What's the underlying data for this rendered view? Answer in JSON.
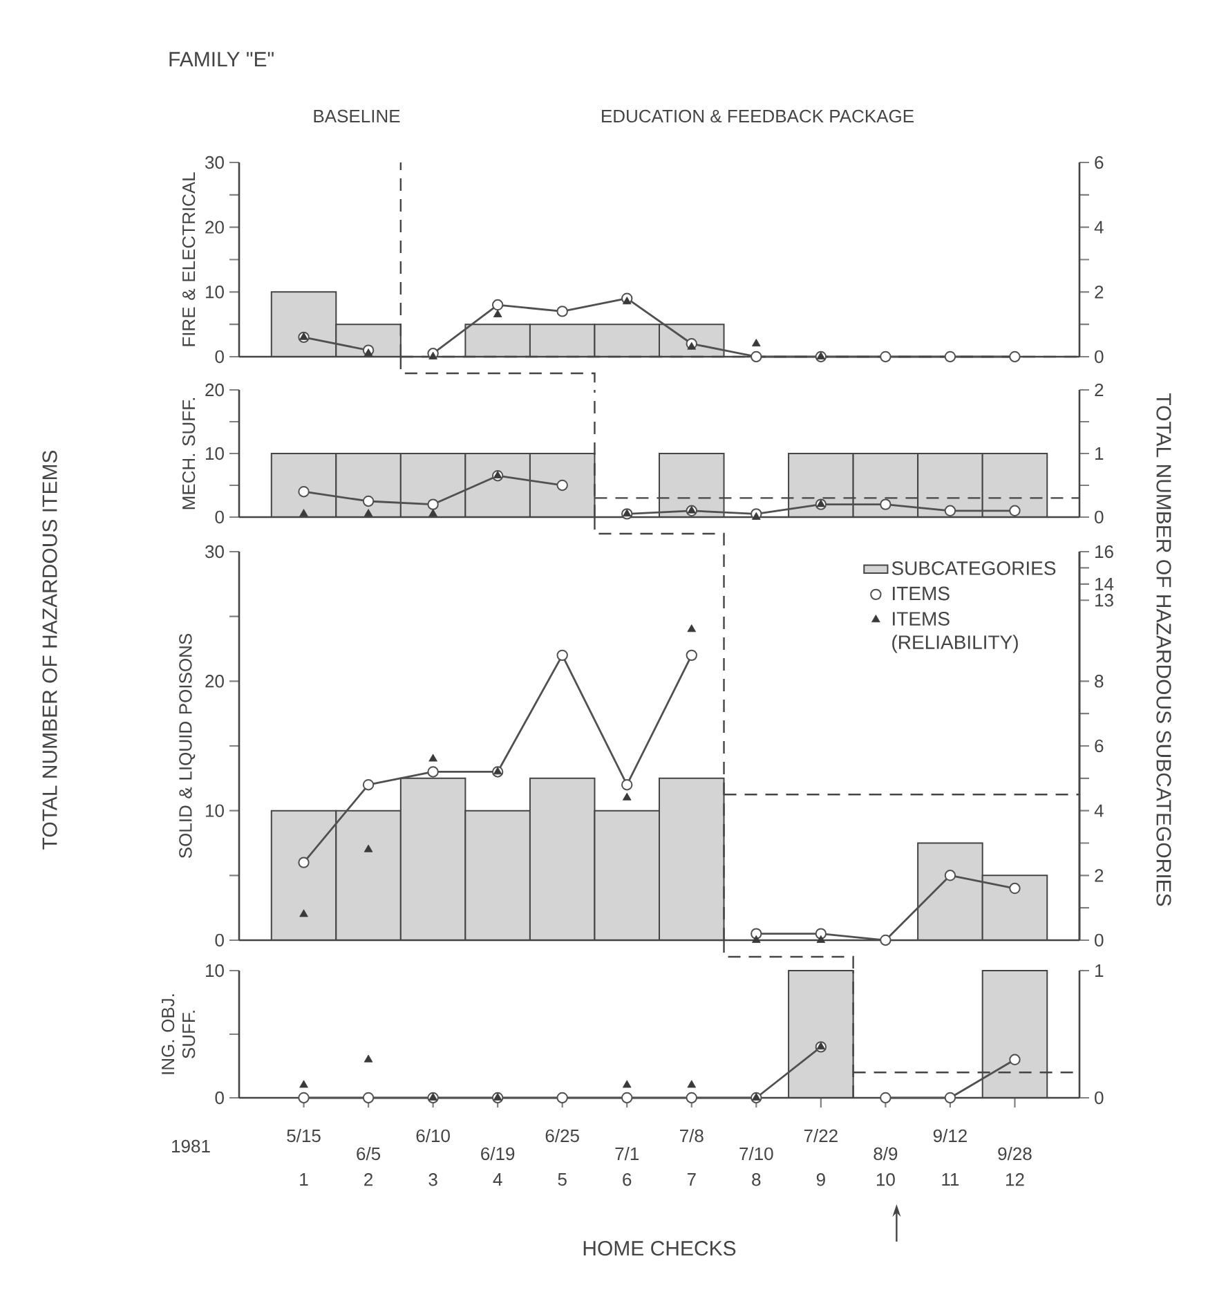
{
  "chart_data": [
    {
      "type": "bar",
      "title": "FAMILY \"E\"",
      "ylabel": "FIRE & ELECTRICAL",
      "x": [
        1,
        2,
        3,
        4,
        5,
        6,
        7,
        8,
        9,
        10,
        11,
        12
      ],
      "xlim": [
        0,
        13
      ],
      "ylim": [
        0,
        30
      ],
      "yticks": [
        0,
        {
          "value": 5,
          "label": null
        },
        10,
        {
          "value": 15,
          "label": null
        },
        20,
        {
          "value": 25,
          "label": null
        },
        30
      ],
      "y2lim": [
        0,
        6
      ],
      "y2ticks": [
        0,
        {
          "value": 1,
          "label": null
        },
        2,
        {
          "value": 3,
          "label": null
        },
        4,
        {
          "value": 5,
          "label": null
        },
        6
      ],
      "tick_labels": "y",
      "series": [
        {
          "axis": "y2",
          "color": "#d4d4d4",
          "values": [
            2,
            1,
            null,
            1,
            1,
            1,
            1,
            null,
            null,
            null,
            null,
            null
          ]
        },
        {
          "type": "line",
          "marker": "circle",
          "line_style": "solid",
          "color": "#505050",
          "values": [
            3,
            1,
            0.5,
            8,
            7,
            9,
            2,
            0,
            0,
            0,
            0,
            0
          ]
        },
        {
          "type": "scatter",
          "marker": "triangle",
          "color": "#3a3a3a",
          "values": [
            3,
            0.5,
            0,
            6.5,
            null,
            8.5,
            1.5,
            2,
            0,
            null,
            null,
            null
          ]
        }
      ],
      "ref_lines": [
        {
          "axis": "x",
          "value": 2.5,
          "line_style": "dashed"
        },
        {
          "axis": "y",
          "value": 0,
          "line_style": "dashed"
        }
      ],
      "annotations": [
        "BASELINE",
        "EDUCATION & FEEDBACK PACKAGE",
        "TOTAL NUMBER OF HAZARDOUS ITEMS",
        "TOTAL NUMBER OF HAZARDOUS SUBCATEGORIES"
      ]
    },
    {
      "type": "bar",
      "ylabel": "MECH. SUFF.",
      "x": [
        1,
        2,
        3,
        4,
        5,
        6,
        7,
        8,
        9,
        10,
        11,
        12
      ],
      "xlim": [
        0,
        13
      ],
      "ylim": [
        0,
        20
      ],
      "yticks": [
        0,
        {
          "value": 5,
          "label": null
        },
        10,
        {
          "value": 15,
          "label": null
        },
        20
      ],
      "y2lim": [
        0,
        2
      ],
      "y2ticks": [
        0,
        {
          "value": 0.5,
          "label": null
        },
        1,
        {
          "value": 1.5,
          "label": null
        },
        2
      ],
      "tick_labels": "y",
      "series": [
        {
          "axis": "y2",
          "color": "#d4d4d4",
          "values": [
            1,
            1,
            1,
            1,
            1,
            null,
            1,
            null,
            1,
            1,
            1,
            1
          ]
        },
        {
          "type": "line",
          "marker": "circle",
          "line_style": "solid",
          "color": "#505050",
          "values": [
            4,
            2.5,
            2,
            6.5,
            5,
            0.5,
            1,
            0.5,
            2,
            2,
            1,
            1
          ]
        },
        {
          "type": "scatter",
          "marker": "triangle",
          "color": "#3a3a3a",
          "values": [
            0.5,
            0.5,
            0.5,
            6.5,
            null,
            0.5,
            1,
            0,
            2,
            null,
            null,
            null
          ]
        }
      ],
      "ref_lines": [
        {
          "axis": "x",
          "value": 5.5,
          "line_style": "dashed"
        },
        {
          "axis": "y",
          "value": 3,
          "line_style": "dashed"
        }
      ]
    },
    {
      "type": "bar",
      "ylabel": "SOLID & LIQUID POISONS",
      "x": [
        1,
        2,
        3,
        4,
        5,
        6,
        7,
        8,
        9,
        10,
        11,
        12
      ],
      "xlim": [
        0,
        13
      ],
      "ylim": [
        0,
        30
      ],
      "yticks": [
        0,
        {
          "value": 5,
          "label": null
        },
        10,
        {
          "value": 15,
          "label": null
        },
        20,
        {
          "value": 25,
          "label": null
        },
        30
      ],
      "y2lim": [
        0,
        12
      ],
      "y2ticks": [
        0,
        {
          "value": 1,
          "label": null
        },
        2,
        {
          "value": 3,
          "label": null
        },
        4,
        {
          "value": 5,
          "label": null
        },
        6,
        {
          "value": 7,
          "label": null
        },
        8
      ],
      "y3lim": [
        -8,
        16
      ],
      "y3ticks": [
        13,
        14,
        {
          "value": 15,
          "label": null
        },
        16
      ],
      "tick_labels": "y",
      "legend": "top right",
      "series": [
        {
          "axis": "y2",
          "name": "SUBCATEGORIES",
          "color": "#d4d4d4",
          "values": [
            4,
            4,
            5,
            4,
            5,
            4,
            5,
            null,
            null,
            null,
            3,
            2
          ]
        },
        {
          "type": "line",
          "name": "ITEMS",
          "marker": "circle",
          "line_style": "solid",
          "color": "#505050",
          "values": [
            6,
            12,
            13,
            13,
            22,
            12,
            22,
            0.5,
            0.5,
            0,
            5,
            4
          ]
        },
        {
          "type": "scatter",
          "name": "ITEMS (RELIABILITY)",
          "marker": "triangle",
          "color": "#3a3a3a",
          "values": [
            2,
            7,
            14,
            13,
            null,
            11,
            24,
            0,
            0,
            null,
            null,
            null
          ]
        }
      ],
      "ref_lines": [
        {
          "axis": "x",
          "value": 7.5,
          "line_style": "dashed"
        },
        {
          "axis": "y2",
          "value": 4.5,
          "line_style": "dashed"
        }
      ]
    },
    {
      "type": "bar",
      "ylabel": "ING. OBJ. SUFF.",
      "xlabel": "HOME CHECKS",
      "x": [
        1,
        2,
        3,
        4,
        5,
        6,
        7,
        8,
        9,
        10,
        11,
        12
      ],
      "xlim": [
        0,
        13
      ],
      "xticks": [
        1,
        2,
        3,
        4,
        5,
        6,
        7,
        8,
        9,
        10,
        11,
        12
      ],
      "ylim": [
        0,
        10
      ],
      "yticks": [
        0,
        {
          "value": 5,
          "label": null
        },
        10
      ],
      "y2lim": [
        0,
        1
      ],
      "y2ticks": [
        0,
        1
      ],
      "series": [
        {
          "axis": "y2",
          "color": "#d4d4d4",
          "values": [
            null,
            null,
            null,
            null,
            null,
            null,
            null,
            null,
            1,
            null,
            null,
            1
          ]
        },
        {
          "type": "line",
          "marker": "circle",
          "line_style": "solid",
          "color": "#505050",
          "values": [
            0,
            0,
            0,
            0,
            0,
            0,
            0,
            0,
            4,
            0,
            0,
            3
          ]
        },
        {
          "type": "scatter",
          "marker": "triangle",
          "color": "#3a3a3a",
          "values": [
            1,
            3,
            0,
            0,
            null,
            1,
            1,
            0,
            4,
            null,
            null,
            null
          ]
        }
      ],
      "ref_lines": [
        {
          "axis": "x",
          "value": 9.5,
          "line_style": "dashed"
        },
        {
          "axis": "y",
          "value": 2,
          "line_style": "dashed"
        }
      ],
      "annotations": [
        "5/15",
        "6/5",
        "6/10",
        "6/19",
        "6/25",
        "7/1",
        "7/8",
        "7/10",
        "7/22",
        "8/9",
        "9/12",
        "9/28",
        "1981"
      ]
    }
  ]
}
